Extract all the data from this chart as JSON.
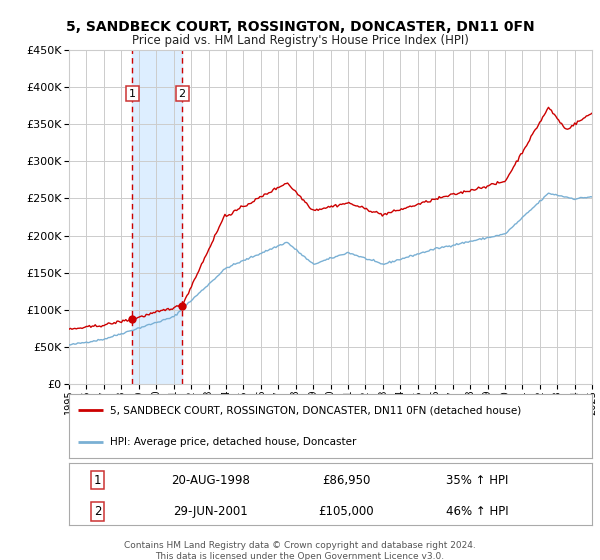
{
  "title": "5, SANDBECK COURT, ROSSINGTON, DONCASTER, DN11 0FN",
  "subtitle": "Price paid vs. HM Land Registry's House Price Index (HPI)",
  "red_legend": "5, SANDBECK COURT, ROSSINGTON, DONCASTER, DN11 0FN (detached house)",
  "blue_legend": "HPI: Average price, detached house, Doncaster",
  "sale1_date": "20-AUG-1998",
  "sale1_price": "£86,950",
  "sale1_hpi": "35% ↑ HPI",
  "sale1_year": 1998.63,
  "sale1_value": 86950,
  "sale2_date": "29-JUN-2001",
  "sale2_price": "£105,000",
  "sale2_hpi": "46% ↑ HPI",
  "sale2_year": 2001.49,
  "sale2_value": 105000,
  "ylim_min": 0,
  "ylim_max": 450000,
  "yticks": [
    0,
    50000,
    100000,
    150000,
    200000,
    250000,
    300000,
    350000,
    400000,
    450000
  ],
  "year_start": 1995,
  "year_end": 2025,
  "background_color": "#ffffff",
  "plot_bg_color": "#ffffff",
  "grid_color": "#cccccc",
  "red_color": "#cc0000",
  "blue_color": "#7ab0d4",
  "shade_color": "#ddeeff",
  "dashed_color": "#cc0000",
  "footer_line1": "Contains HM Land Registry data © Crown copyright and database right 2024.",
  "footer_line2": "This data is licensed under the Open Government Licence v3.0."
}
